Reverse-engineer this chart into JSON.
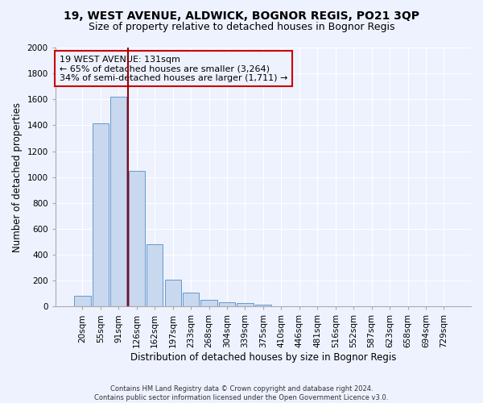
{
  "title": "19, WEST AVENUE, ALDWICK, BOGNOR REGIS, PO21 3QP",
  "subtitle": "Size of property relative to detached houses in Bognor Regis",
  "xlabel": "Distribution of detached houses by size in Bognor Regis",
  "ylabel": "Number of detached properties",
  "footnote": "Contains HM Land Registry data © Crown copyright and database right 2024.\nContains public sector information licensed under the Open Government Licence v3.0.",
  "bar_labels": [
    "20sqm",
    "55sqm",
    "91sqm",
    "126sqm",
    "162sqm",
    "197sqm",
    "233sqm",
    "268sqm",
    "304sqm",
    "339sqm",
    "375sqm",
    "410sqm",
    "446sqm",
    "481sqm",
    "516sqm",
    "552sqm",
    "587sqm",
    "623sqm",
    "658sqm",
    "694sqm",
    "729sqm"
  ],
  "bar_values": [
    80,
    1415,
    1620,
    1050,
    480,
    205,
    105,
    50,
    35,
    25,
    15,
    0,
    0,
    0,
    0,
    0,
    0,
    0,
    0,
    0,
    0
  ],
  "bar_color": "#c8d8ee",
  "bar_edge_color": "#6699cc",
  "property_label": "19 WEST AVENUE: 131sqm",
  "annotation_line1": "← 65% of detached houses are smaller (3,264)",
  "annotation_line2": "34% of semi-detached houses are larger (1,711) →",
  "vline_x": 2.5,
  "vline_color": "#990000",
  "ylim": [
    0,
    2000
  ],
  "yticks": [
    0,
    200,
    400,
    600,
    800,
    1000,
    1200,
    1400,
    1600,
    1800,
    2000
  ],
  "background_color": "#eef2ff",
  "grid_color": "#ffffff",
  "annotation_box_color": "#cc0000",
  "title_fontsize": 10,
  "subtitle_fontsize": 9,
  "axis_label_fontsize": 8.5,
  "tick_fontsize": 7.5,
  "annotation_fontsize": 8
}
